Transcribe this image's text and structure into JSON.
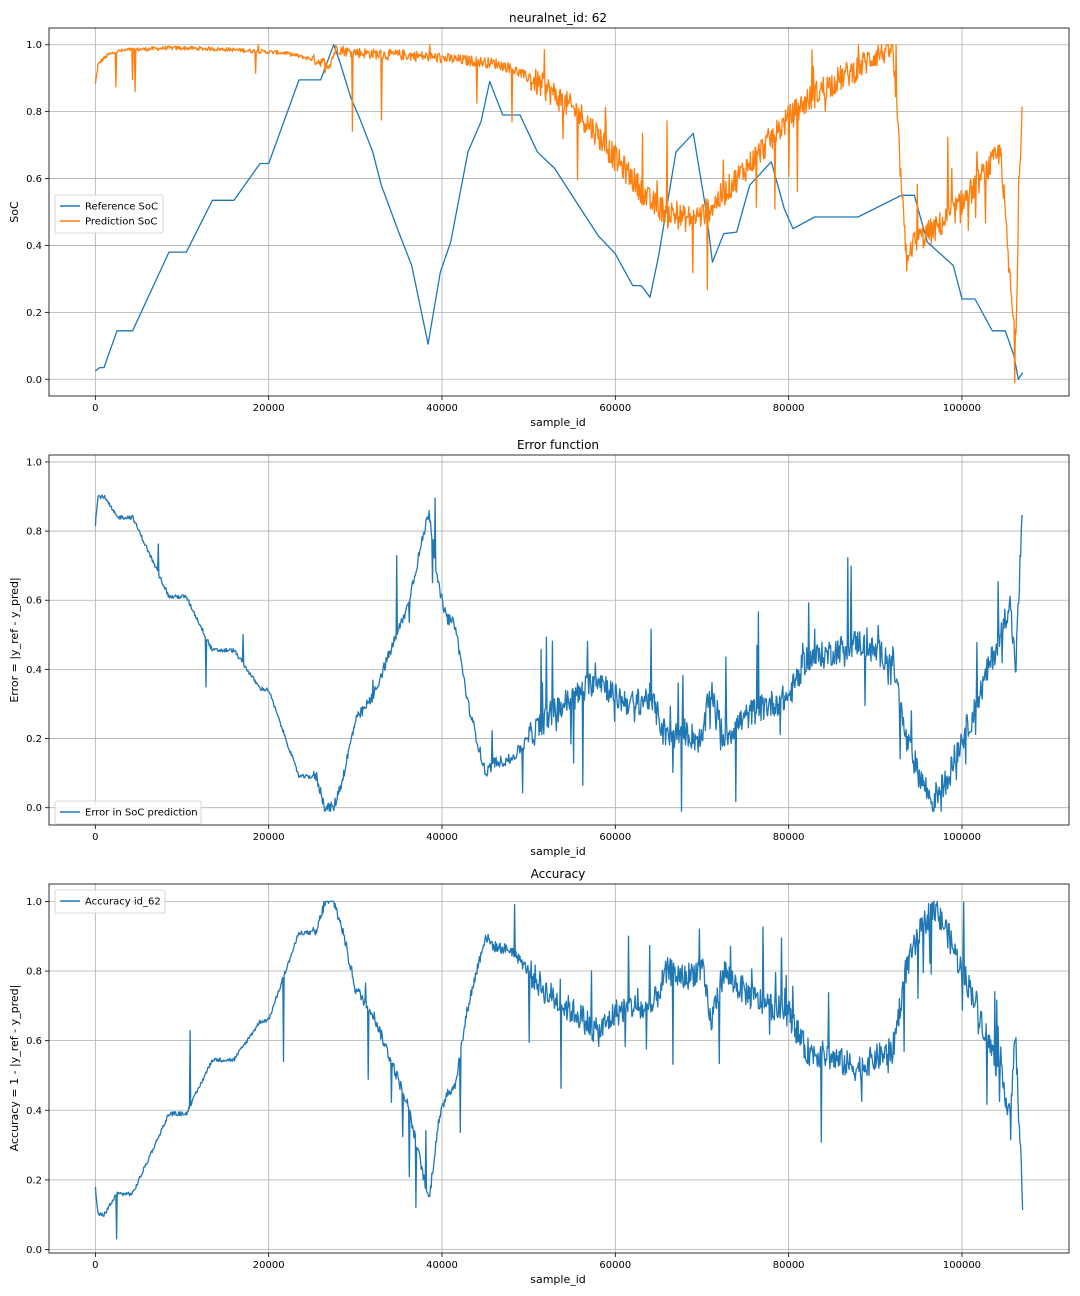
{
  "chart_data": [
    {
      "type": "line",
      "title": "neuralnet_id: 62",
      "xlabel": "sample_id",
      "ylabel": "SoC",
      "xlim": [
        -5350,
        112350
      ],
      "ylim": [
        -0.05,
        1.05
      ],
      "xticks": [
        0,
        20000,
        40000,
        60000,
        80000,
        100000
      ],
      "xtick_labels": [
        "0",
        "20000",
        "40000",
        "60000",
        "80000",
        "100000"
      ],
      "yticks": [
        0.0,
        0.2,
        0.4,
        0.6,
        0.8,
        1.0
      ],
      "ytick_labels": [
        "0.0",
        "0.2",
        "0.4",
        "0.6",
        "0.8",
        "1.0"
      ],
      "grid": true,
      "legend_position": "center-left",
      "series": [
        {
          "name": "Reference SoC",
          "color": "#1f77b4",
          "style": "smooth",
          "x": [
            0,
            500,
            1000,
            2500,
            4300,
            8500,
            10500,
            13500,
            16000,
            19000,
            20000,
            23500,
            26000,
            27500,
            28200,
            29500,
            30500,
            32000,
            33000,
            35000,
            36500,
            38400,
            39800,
            41000,
            43000,
            44500,
            45500,
            47000,
            49000,
            51000,
            53000,
            55500,
            58000,
            60000,
            62000,
            63000,
            64000,
            65000,
            67000,
            69000,
            70500,
            71200,
            72500,
            74000,
            75500,
            78000,
            79500,
            80500,
            83000,
            88000,
            93000,
            94500,
            96000,
            99000,
            100000,
            101500,
            103500,
            105000,
            106000,
            106500,
            107000
          ],
          "y": [
            0.025,
            0.035,
            0.035,
            0.145,
            0.145,
            0.38,
            0.38,
            0.535,
            0.535,
            0.645,
            0.645,
            0.895,
            0.895,
            1.0,
            0.95,
            0.84,
            0.78,
            0.68,
            0.58,
            0.44,
            0.34,
            0.105,
            0.32,
            0.41,
            0.68,
            0.77,
            0.89,
            0.79,
            0.79,
            0.68,
            0.63,
            0.53,
            0.43,
            0.375,
            0.28,
            0.28,
            0.245,
            0.37,
            0.68,
            0.735,
            0.5,
            0.35,
            0.435,
            0.44,
            0.58,
            0.65,
            0.51,
            0.45,
            0.485,
            0.485,
            0.55,
            0.55,
            0.41,
            0.34,
            0.24,
            0.24,
            0.145,
            0.145,
            0.07,
            0.0,
            0.02
          ]
        },
        {
          "name": "Prediction SoC",
          "color": "#ff7f0e",
          "style": "noisy",
          "x": [
            0,
            300,
            800,
            1500,
            2500,
            4000,
            6000,
            8000,
            10000,
            13000,
            16000,
            19000,
            22000,
            24500,
            26000,
            27000,
            27800,
            29000,
            31000,
            33500,
            35000,
            38000,
            40000,
            42000,
            44000,
            46000,
            48000,
            50000,
            52000,
            54000,
            56000,
            58000,
            60000,
            62000,
            64000,
            66000,
            68000,
            70000,
            72000,
            74000,
            76000,
            78000,
            80000,
            82000,
            84000,
            86000,
            88000,
            90000,
            92000,
            93500,
            95000,
            97000,
            99000,
            101000,
            103000,
            104500,
            105500,
            106200,
            106600,
            107000
          ],
          "y": [
            0.88,
            0.94,
            0.955,
            0.97,
            0.98,
            0.985,
            0.987,
            0.99,
            0.99,
            0.988,
            0.985,
            0.98,
            0.975,
            0.96,
            0.95,
            0.94,
            0.99,
            0.98,
            0.975,
            0.97,
            0.97,
            0.965,
            0.96,
            0.955,
            0.95,
            0.945,
            0.93,
            0.9,
            0.87,
            0.83,
            0.79,
            0.73,
            0.66,
            0.6,
            0.53,
            0.5,
            0.48,
            0.49,
            0.54,
            0.6,
            0.66,
            0.72,
            0.78,
            0.83,
            0.87,
            0.9,
            0.93,
            0.97,
            0.99,
            0.38,
            0.42,
            0.45,
            0.5,
            0.56,
            0.63,
            0.68,
            0.3,
            0.1,
            0.6,
            0.85
          ]
        }
      ]
    },
    {
      "type": "line",
      "title": "Error function",
      "xlabel": "sample_id",
      "ylabel": "Error = |y_ref - y_pred|",
      "xlim": [
        -5350,
        112350
      ],
      "ylim": [
        -0.05,
        1.02
      ],
      "xticks": [
        0,
        20000,
        40000,
        60000,
        80000,
        100000
      ],
      "xtick_labels": [
        "0",
        "20000",
        "40000",
        "60000",
        "80000",
        "100000"
      ],
      "yticks": [
        0.0,
        0.2,
        0.4,
        0.6,
        0.8,
        1.0
      ],
      "ytick_labels": [
        "0.0",
        "0.2",
        "0.4",
        "0.6",
        "0.8",
        "1.0"
      ],
      "grid": true,
      "legend_position": "bottom-left",
      "series": [
        {
          "name": "Error in SoC prediction",
          "color": "#1f77b4",
          "style": "noisy",
          "x": [
            0,
            300,
            1000,
            2500,
            4300,
            8500,
            10500,
            13500,
            16000,
            17500,
            19000,
            20000,
            23500,
            25500,
            26500,
            27500,
            28500,
            30000,
            32000,
            34000,
            36000,
            38500,
            39500,
            40500,
            41500,
            43000,
            45000,
            46000,
            48000,
            50000,
            52000,
            54000,
            56000,
            58000,
            60000,
            62000,
            64000,
            66000,
            68000,
            70000,
            71000,
            72500,
            74000,
            76000,
            78000,
            80000,
            82000,
            84000,
            86000,
            88000,
            90000,
            92000,
            93500,
            95000,
            96500,
            98000,
            100000,
            101500,
            103000,
            104500,
            105500,
            106200,
            106700,
            107000
          ],
          "y": [
            0.82,
            0.9,
            0.9,
            0.84,
            0.84,
            0.61,
            0.61,
            0.455,
            0.455,
            0.4,
            0.345,
            0.34,
            0.09,
            0.09,
            0.0,
            0.0,
            0.08,
            0.25,
            0.32,
            0.45,
            0.58,
            0.86,
            0.65,
            0.55,
            0.53,
            0.3,
            0.1,
            0.13,
            0.14,
            0.2,
            0.26,
            0.3,
            0.33,
            0.38,
            0.32,
            0.3,
            0.32,
            0.2,
            0.22,
            0.19,
            0.35,
            0.2,
            0.24,
            0.28,
            0.3,
            0.32,
            0.43,
            0.44,
            0.46,
            0.48,
            0.45,
            0.43,
            0.2,
            0.1,
            0.02,
            0.07,
            0.2,
            0.28,
            0.4,
            0.5,
            0.6,
            0.4,
            0.7,
            0.85
          ]
        }
      ]
    },
    {
      "type": "line",
      "title": "Accuracy",
      "xlabel": "sample_id",
      "ylabel": "Accuracy = 1 - |y_ref - y_pred|",
      "xlim": [
        -5350,
        112350
      ],
      "ylim": [
        -0.01,
        1.05
      ],
      "xticks": [
        0,
        20000,
        40000,
        60000,
        80000,
        100000
      ],
      "xtick_labels": [
        "0",
        "20000",
        "40000",
        "60000",
        "80000",
        "100000"
      ],
      "yticks": [
        0.0,
        0.2,
        0.4,
        0.6,
        0.8,
        1.0
      ],
      "ytick_labels": [
        "0.0",
        "0.2",
        "0.4",
        "0.6",
        "0.8",
        "1.0"
      ],
      "grid": true,
      "legend_position": "top-left",
      "series": [
        {
          "name": "Accuracy id_62",
          "color": "#1f77b4",
          "style": "noisy",
          "x": [
            0,
            300,
            1000,
            2500,
            4300,
            8500,
            10500,
            13500,
            16000,
            17500,
            19000,
            20000,
            23500,
            25500,
            26500,
            27500,
            28500,
            30000,
            32000,
            34000,
            36000,
            38500,
            39500,
            40500,
            41500,
            43000,
            45000,
            46000,
            48000,
            50000,
            52000,
            54000,
            56000,
            58000,
            60000,
            62000,
            64000,
            66000,
            68000,
            70000,
            71000,
            72500,
            74000,
            76000,
            78000,
            80000,
            82000,
            84000,
            86000,
            88000,
            90000,
            92000,
            93500,
            95000,
            96500,
            98000,
            100000,
            101500,
            103000,
            104500,
            105500,
            106200,
            106700,
            107000
          ],
          "y": [
            0.18,
            0.1,
            0.1,
            0.16,
            0.16,
            0.39,
            0.39,
            0.545,
            0.545,
            0.6,
            0.655,
            0.66,
            0.91,
            0.91,
            1.0,
            1.0,
            0.92,
            0.75,
            0.68,
            0.55,
            0.42,
            0.14,
            0.35,
            0.45,
            0.47,
            0.7,
            0.9,
            0.87,
            0.86,
            0.8,
            0.74,
            0.7,
            0.67,
            0.62,
            0.68,
            0.7,
            0.68,
            0.8,
            0.78,
            0.81,
            0.65,
            0.8,
            0.76,
            0.72,
            0.7,
            0.68,
            0.57,
            0.56,
            0.54,
            0.52,
            0.55,
            0.57,
            0.8,
            0.9,
            0.98,
            0.93,
            0.8,
            0.72,
            0.6,
            0.5,
            0.4,
            0.6,
            0.3,
            0.15
          ]
        }
      ]
    }
  ]
}
